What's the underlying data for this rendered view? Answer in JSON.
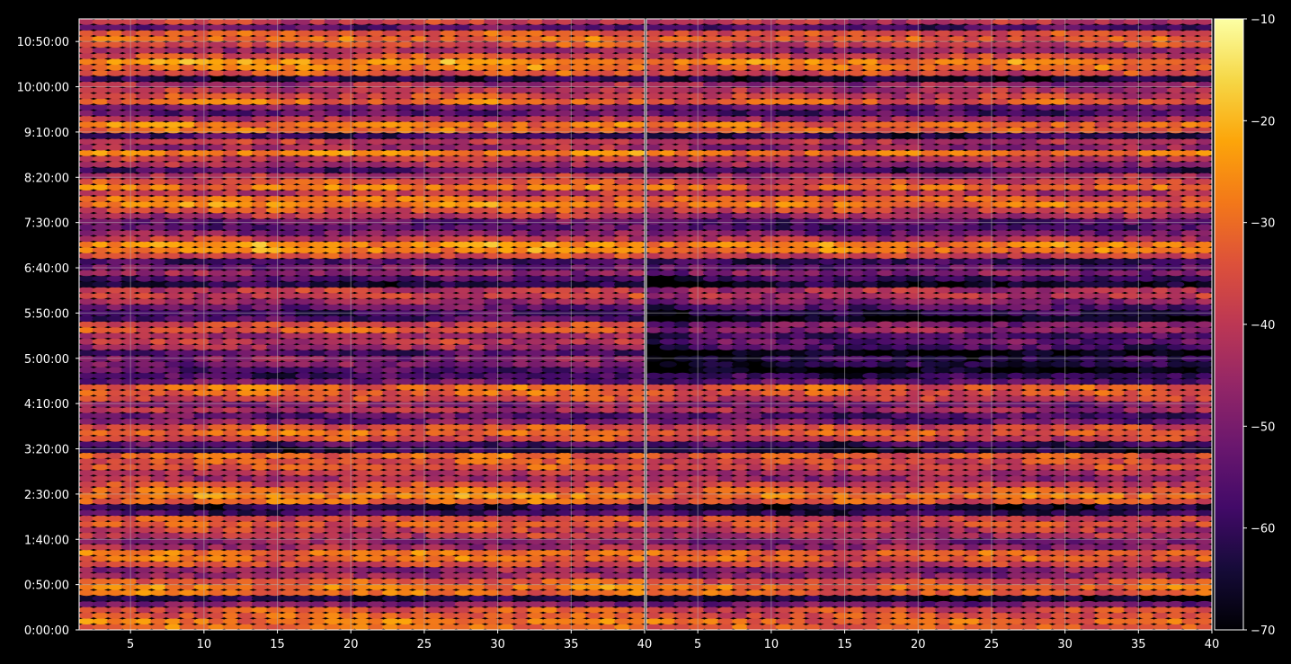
{
  "chart_data": [
    {
      "type": "heatmap",
      "x_range": [
        1.5,
        40
      ],
      "x_ticks": [
        5,
        10,
        15,
        20,
        25,
        30,
        35,
        40
      ],
      "y_ticks": [
        "0:00:00",
        "0:50:00",
        "1:40:00",
        "2:30:00",
        "3:20:00",
        "4:10:00",
        "5:00:00",
        "5:50:00",
        "6:40:00",
        "7:30:00",
        "8:20:00",
        "9:10:00",
        "10:00:00",
        "10:50:00"
      ],
      "y_tick_seconds": [
        0,
        3000,
        6000,
        9000,
        12000,
        15000,
        18000,
        21000,
        24000,
        27000,
        30000,
        33000,
        36000,
        39000
      ],
      "y_range_seconds": [
        0,
        40500
      ],
      "grid": true,
      "value_range": [
        -70,
        -10
      ],
      "row_strength_note": "approximate mean level (dB) per time row, bottom to top",
      "row_levels_db": [
        -30,
        -28,
        -32,
        -34,
        -48,
        -62,
        -30,
        -27,
        -33,
        -44,
        -46,
        -36,
        -30,
        -29,
        -44,
        -48,
        -40,
        -38,
        -33,
        -36,
        -58,
        -62,
        -30,
        -26,
        -30,
        -36,
        -44,
        -40,
        -34,
        -34,
        -30,
        -62,
        -56,
        -36,
        -30,
        -34,
        -50,
        -54,
        -42,
        -48,
        -36,
        -32,
        -30,
        -52,
        -58,
        -56,
        -50,
        -48,
        -56,
        -44,
        -40,
        -44,
        -34,
        -36,
        -56,
        -58,
        -52,
        -44,
        -38,
        -40,
        -62,
        -56,
        -46,
        -52,
        -58,
        -36,
        -26,
        -24,
        -40,
        -48,
        -54,
        -52,
        -42,
        -34,
        -26,
        -30,
        -40,
        -28,
        -34,
        -40,
        -56,
        -42,
        -38,
        -26,
        -44,
        -40,
        -58,
        -30,
        -28,
        -42,
        -54,
        -50,
        -30,
        -36,
        -40,
        -44,
        -62,
        -34,
        -28,
        -24,
        -36,
        -44,
        -34,
        -30,
        -32,
        -54,
        -38
      ]
    },
    {
      "type": "heatmap",
      "x_range": [
        1.5,
        40
      ],
      "x_ticks": [
        5,
        10,
        15,
        20,
        25,
        30,
        35,
        40
      ],
      "y_ticks": [],
      "grid": true,
      "value_range": [
        -70,
        -10
      ],
      "note": "same time rows as left panel, values attenuated by about 3 dB with a weaker region in 4:45:00-5:50:00"
    }
  ],
  "colorbar": {
    "colormap": "inferno",
    "min": -70,
    "max": -10,
    "ticks": [
      "−10",
      "−20",
      "−30",
      "−40",
      "−50",
      "−60",
      "−70"
    ],
    "tick_values": [
      -10,
      -20,
      -30,
      -40,
      -50,
      -60,
      -70
    ]
  },
  "colors": {
    "background": "#000000",
    "axis": "#ffffff",
    "grid": "#b0b0b0"
  }
}
